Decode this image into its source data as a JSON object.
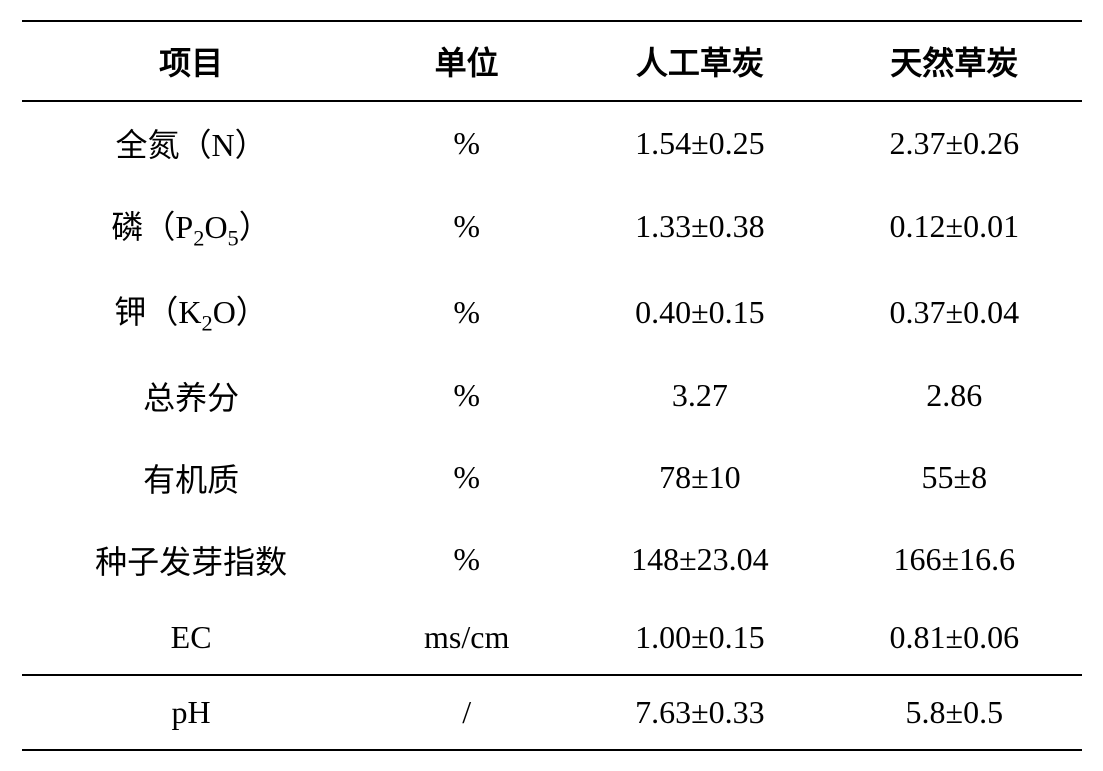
{
  "table": {
    "type": "table",
    "background_color": "#ffffff",
    "border_color": "#000000",
    "text_color": "#000000",
    "header_fontsize": 32,
    "body_fontsize": 32,
    "columns": [
      {
        "key": "item",
        "label": "项目",
        "width": "32%",
        "align": "center"
      },
      {
        "key": "unit",
        "label": "单位",
        "width": "20%",
        "align": "center"
      },
      {
        "key": "artificial",
        "label": "人工草炭",
        "width": "24%",
        "align": "center"
      },
      {
        "key": "natural",
        "label": "天然草炭",
        "width": "24%",
        "align": "center"
      }
    ],
    "rows": [
      {
        "item": "全氮（N）",
        "item_has_sub": false,
        "unit": "%",
        "artificial": "1.54±0.25",
        "natural": "2.37±0.26"
      },
      {
        "item": "磷（P₂O₅）",
        "item_has_sub": true,
        "item_prefix": "磷（P",
        "item_sub1": "2",
        "item_mid": "O",
        "item_sub2": "5",
        "item_suffix": "）",
        "unit": "%",
        "artificial": "1.33±0.38",
        "natural": "0.12±0.01"
      },
      {
        "item": "钾（K₂O）",
        "item_has_sub": true,
        "item_prefix": "钾（K",
        "item_sub1": "2",
        "item_mid": "O",
        "item_sub2": "",
        "item_suffix": "）",
        "unit": "%",
        "artificial": "0.40±0.15",
        "natural": "0.37±0.04"
      },
      {
        "item": "总养分",
        "item_has_sub": false,
        "unit": "%",
        "artificial": "3.27",
        "natural": "2.86"
      },
      {
        "item": "有机质",
        "item_has_sub": false,
        "unit": "%",
        "artificial": "78±10",
        "natural": "55±8"
      },
      {
        "item": "种子发芽指数",
        "item_has_sub": false,
        "unit": "%",
        "artificial": "148±23.04",
        "natural": "166±16.6"
      },
      {
        "item": "EC",
        "item_has_sub": false,
        "unit": "ms/cm",
        "artificial": "1.00±0.15",
        "natural": "0.81±0.06"
      },
      {
        "item": "pH",
        "item_has_sub": false,
        "unit": "/",
        "artificial": "7.63±0.33",
        "natural": "5.8±0.5"
      }
    ],
    "border_rules": {
      "top_border": true,
      "header_bottom_border": true,
      "row_7_bottom_border": true,
      "row_8_bottom_border": true
    }
  }
}
